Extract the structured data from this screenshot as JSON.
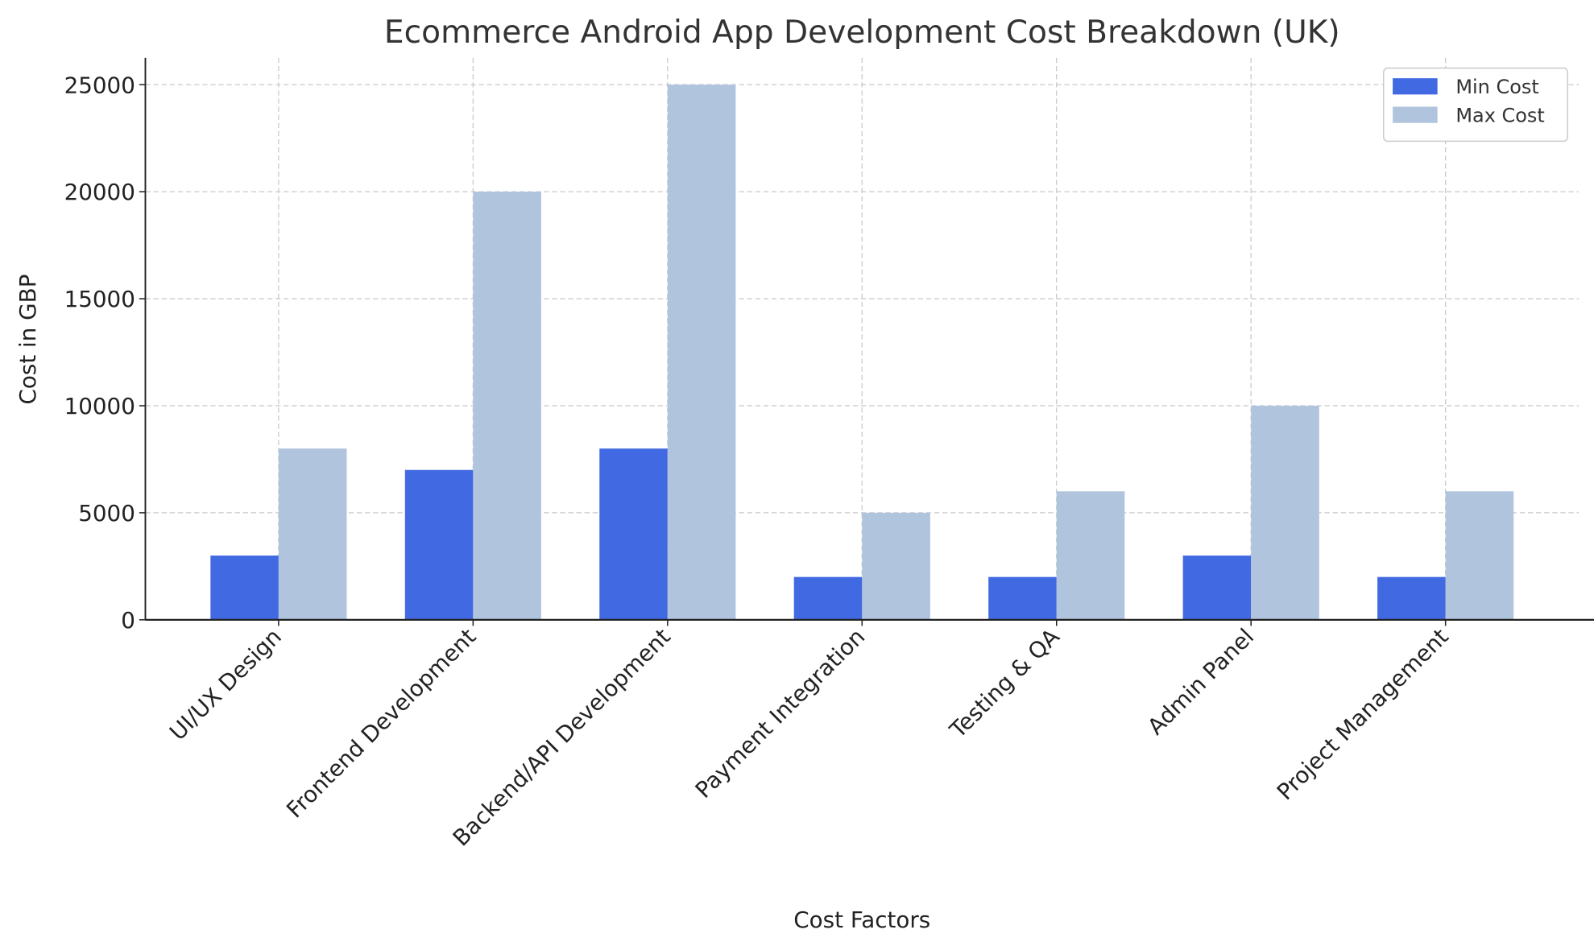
{
  "chart_data": {
    "type": "bar",
    "title": "Ecommerce Android App Development Cost Breakdown (UK)",
    "xlabel": "Cost Factors",
    "ylabel": "Cost in GBP",
    "categories": [
      "UI/UX Design",
      "Frontend Development",
      "Backend/API Development",
      "Payment Integration",
      "Testing & QA",
      "Admin Panel",
      "Project Management"
    ],
    "series": [
      {
        "name": "Min Cost",
        "color": "#4169e1",
        "values": [
          3000,
          7000,
          8000,
          2000,
          2000,
          3000,
          2000
        ]
      },
      {
        "name": "Max Cost",
        "color": "#b0c4de",
        "values": [
          8000,
          20000,
          25000,
          5000,
          6000,
          10000,
          6000
        ]
      }
    ],
    "ylim": [
      0,
      26250
    ],
    "yticks": [
      0,
      5000,
      10000,
      15000,
      20000,
      25000
    ],
    "grid": true,
    "legend": "top-right"
  }
}
